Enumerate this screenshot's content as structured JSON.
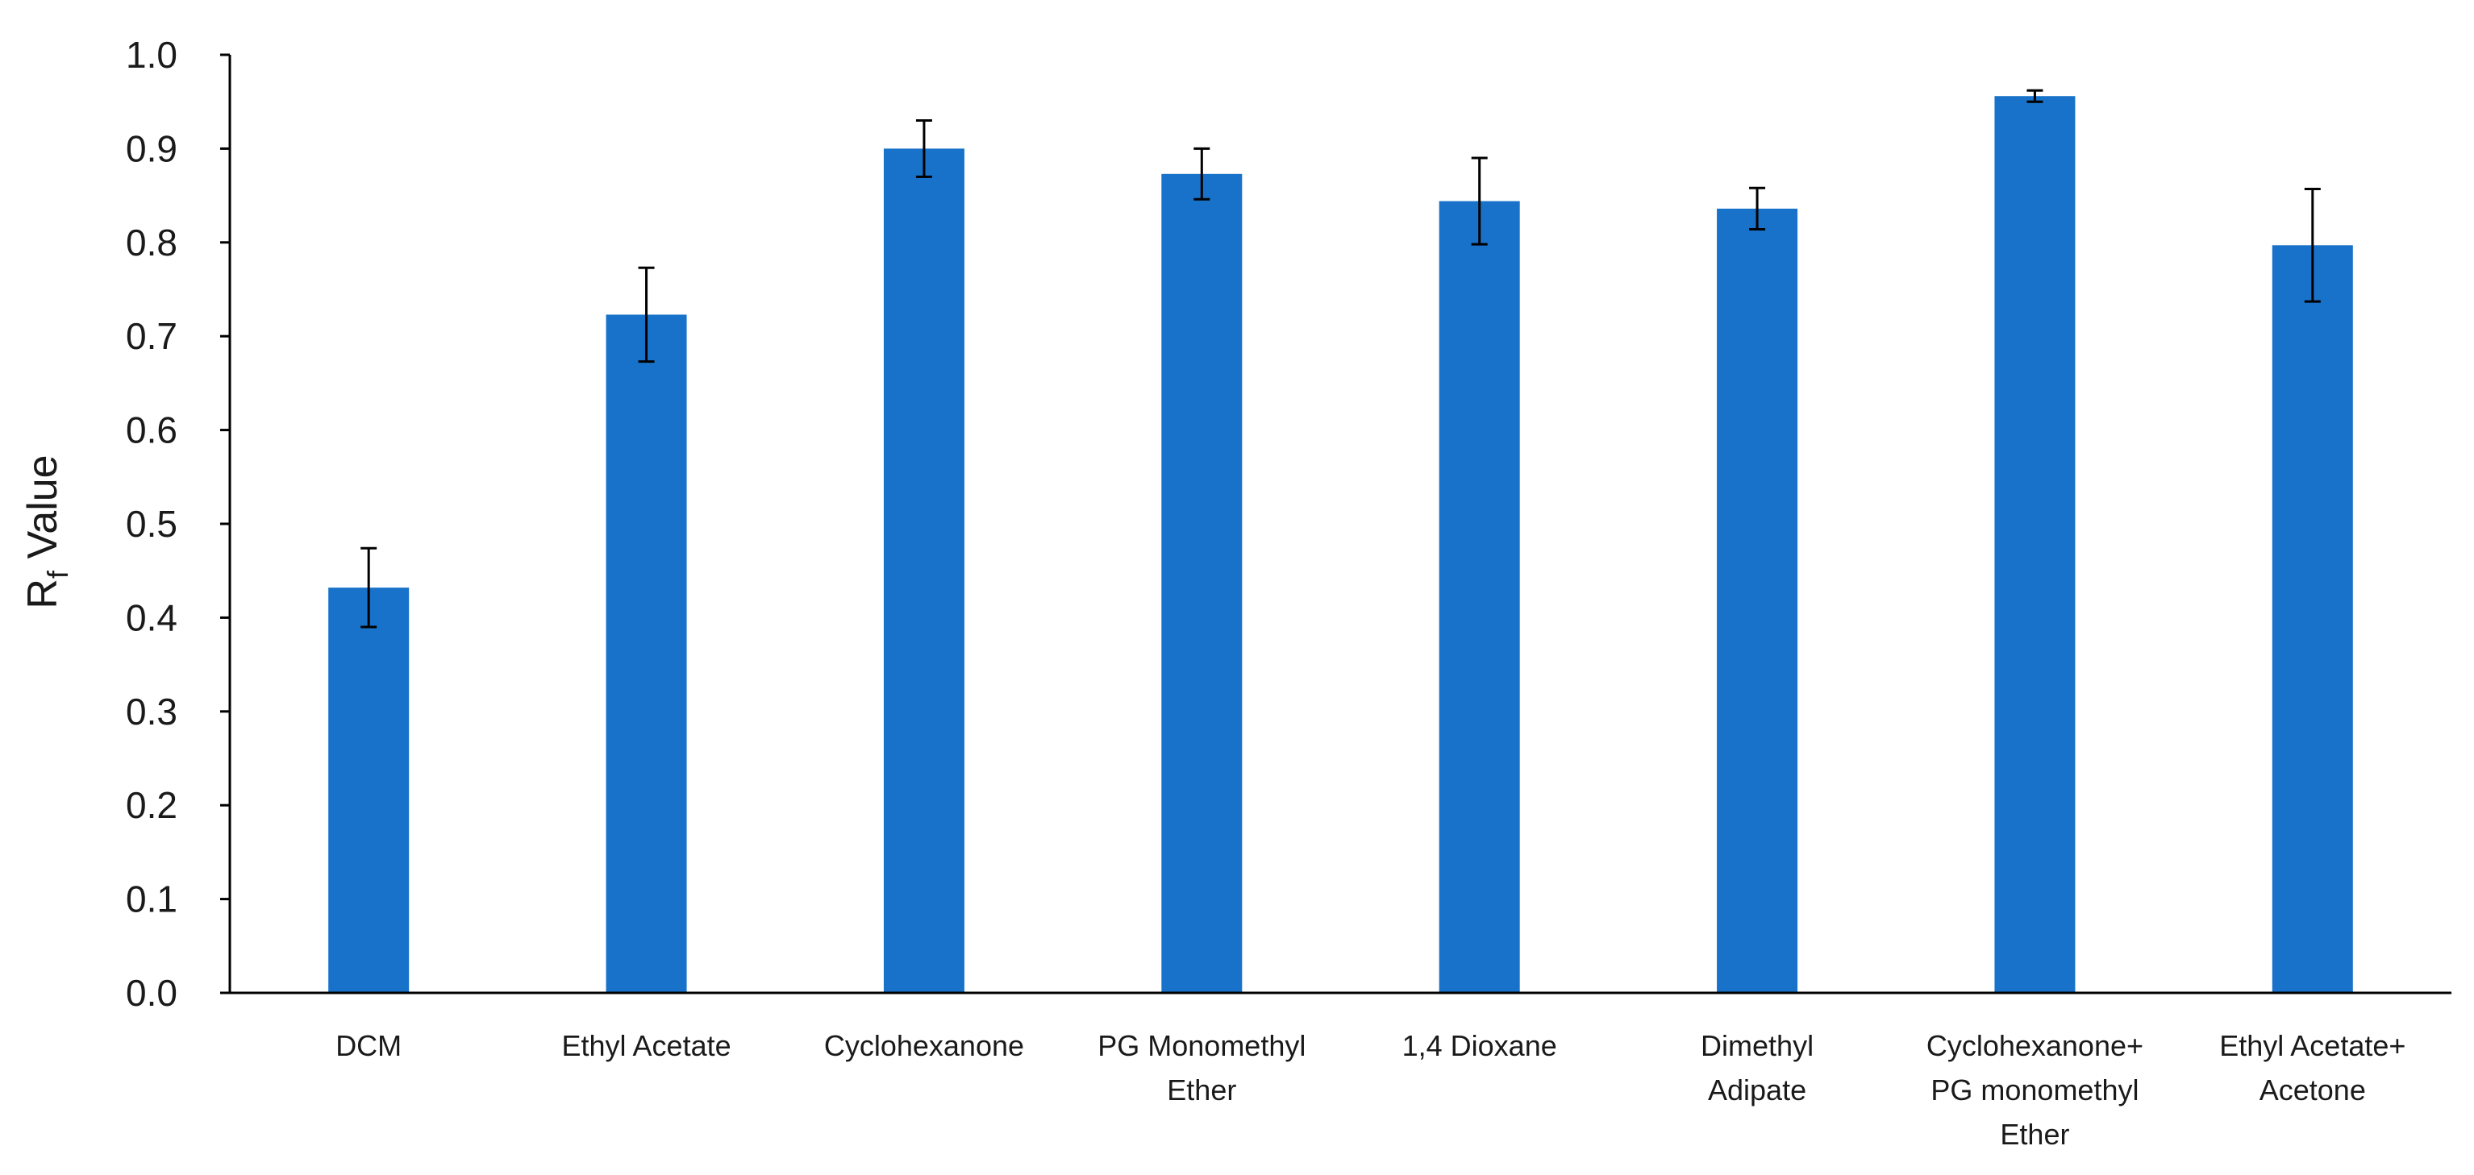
{
  "chart_data": {
    "type": "bar",
    "title": "",
    "xlabel": "",
    "ylabel": {
      "main": "R",
      "subscript": "f",
      "suffix": " Value"
    },
    "ylim": [
      0,
      1.0
    ],
    "yticks": [
      0.0,
      0.1,
      0.2,
      0.3,
      0.4,
      0.5,
      0.6,
      0.7,
      0.8,
      0.9,
      1.0
    ],
    "ytick_labels": [
      "0.0",
      "0.1",
      "0.2",
      "0.3",
      "0.4",
      "0.5",
      "0.6",
      "0.7",
      "0.8",
      "0.9",
      "1.0"
    ],
    "grid": false,
    "legend": "none",
    "bar_color": "#1872C9",
    "axis_color": "#000000",
    "categories": [
      [
        "DCM"
      ],
      [
        "Ethyl Acetate"
      ],
      [
        "Cyclohexanone"
      ],
      [
        "PG Monomethyl",
        "Ether"
      ],
      [
        "1,4 Dioxane"
      ],
      [
        "Dimethyl",
        "Adipate"
      ],
      [
        "Cyclohexanone+",
        "PG monomethyl",
        "Ether"
      ],
      [
        "Ethyl Acetate+",
        "Acetone"
      ]
    ],
    "values": [
      0.432,
      0.723,
      0.9,
      0.873,
      0.844,
      0.836,
      0.956,
      0.797
    ],
    "error": [
      0.042,
      0.05,
      0.03,
      0.027,
      0.046,
      0.022,
      0.006,
      0.06
    ]
  }
}
